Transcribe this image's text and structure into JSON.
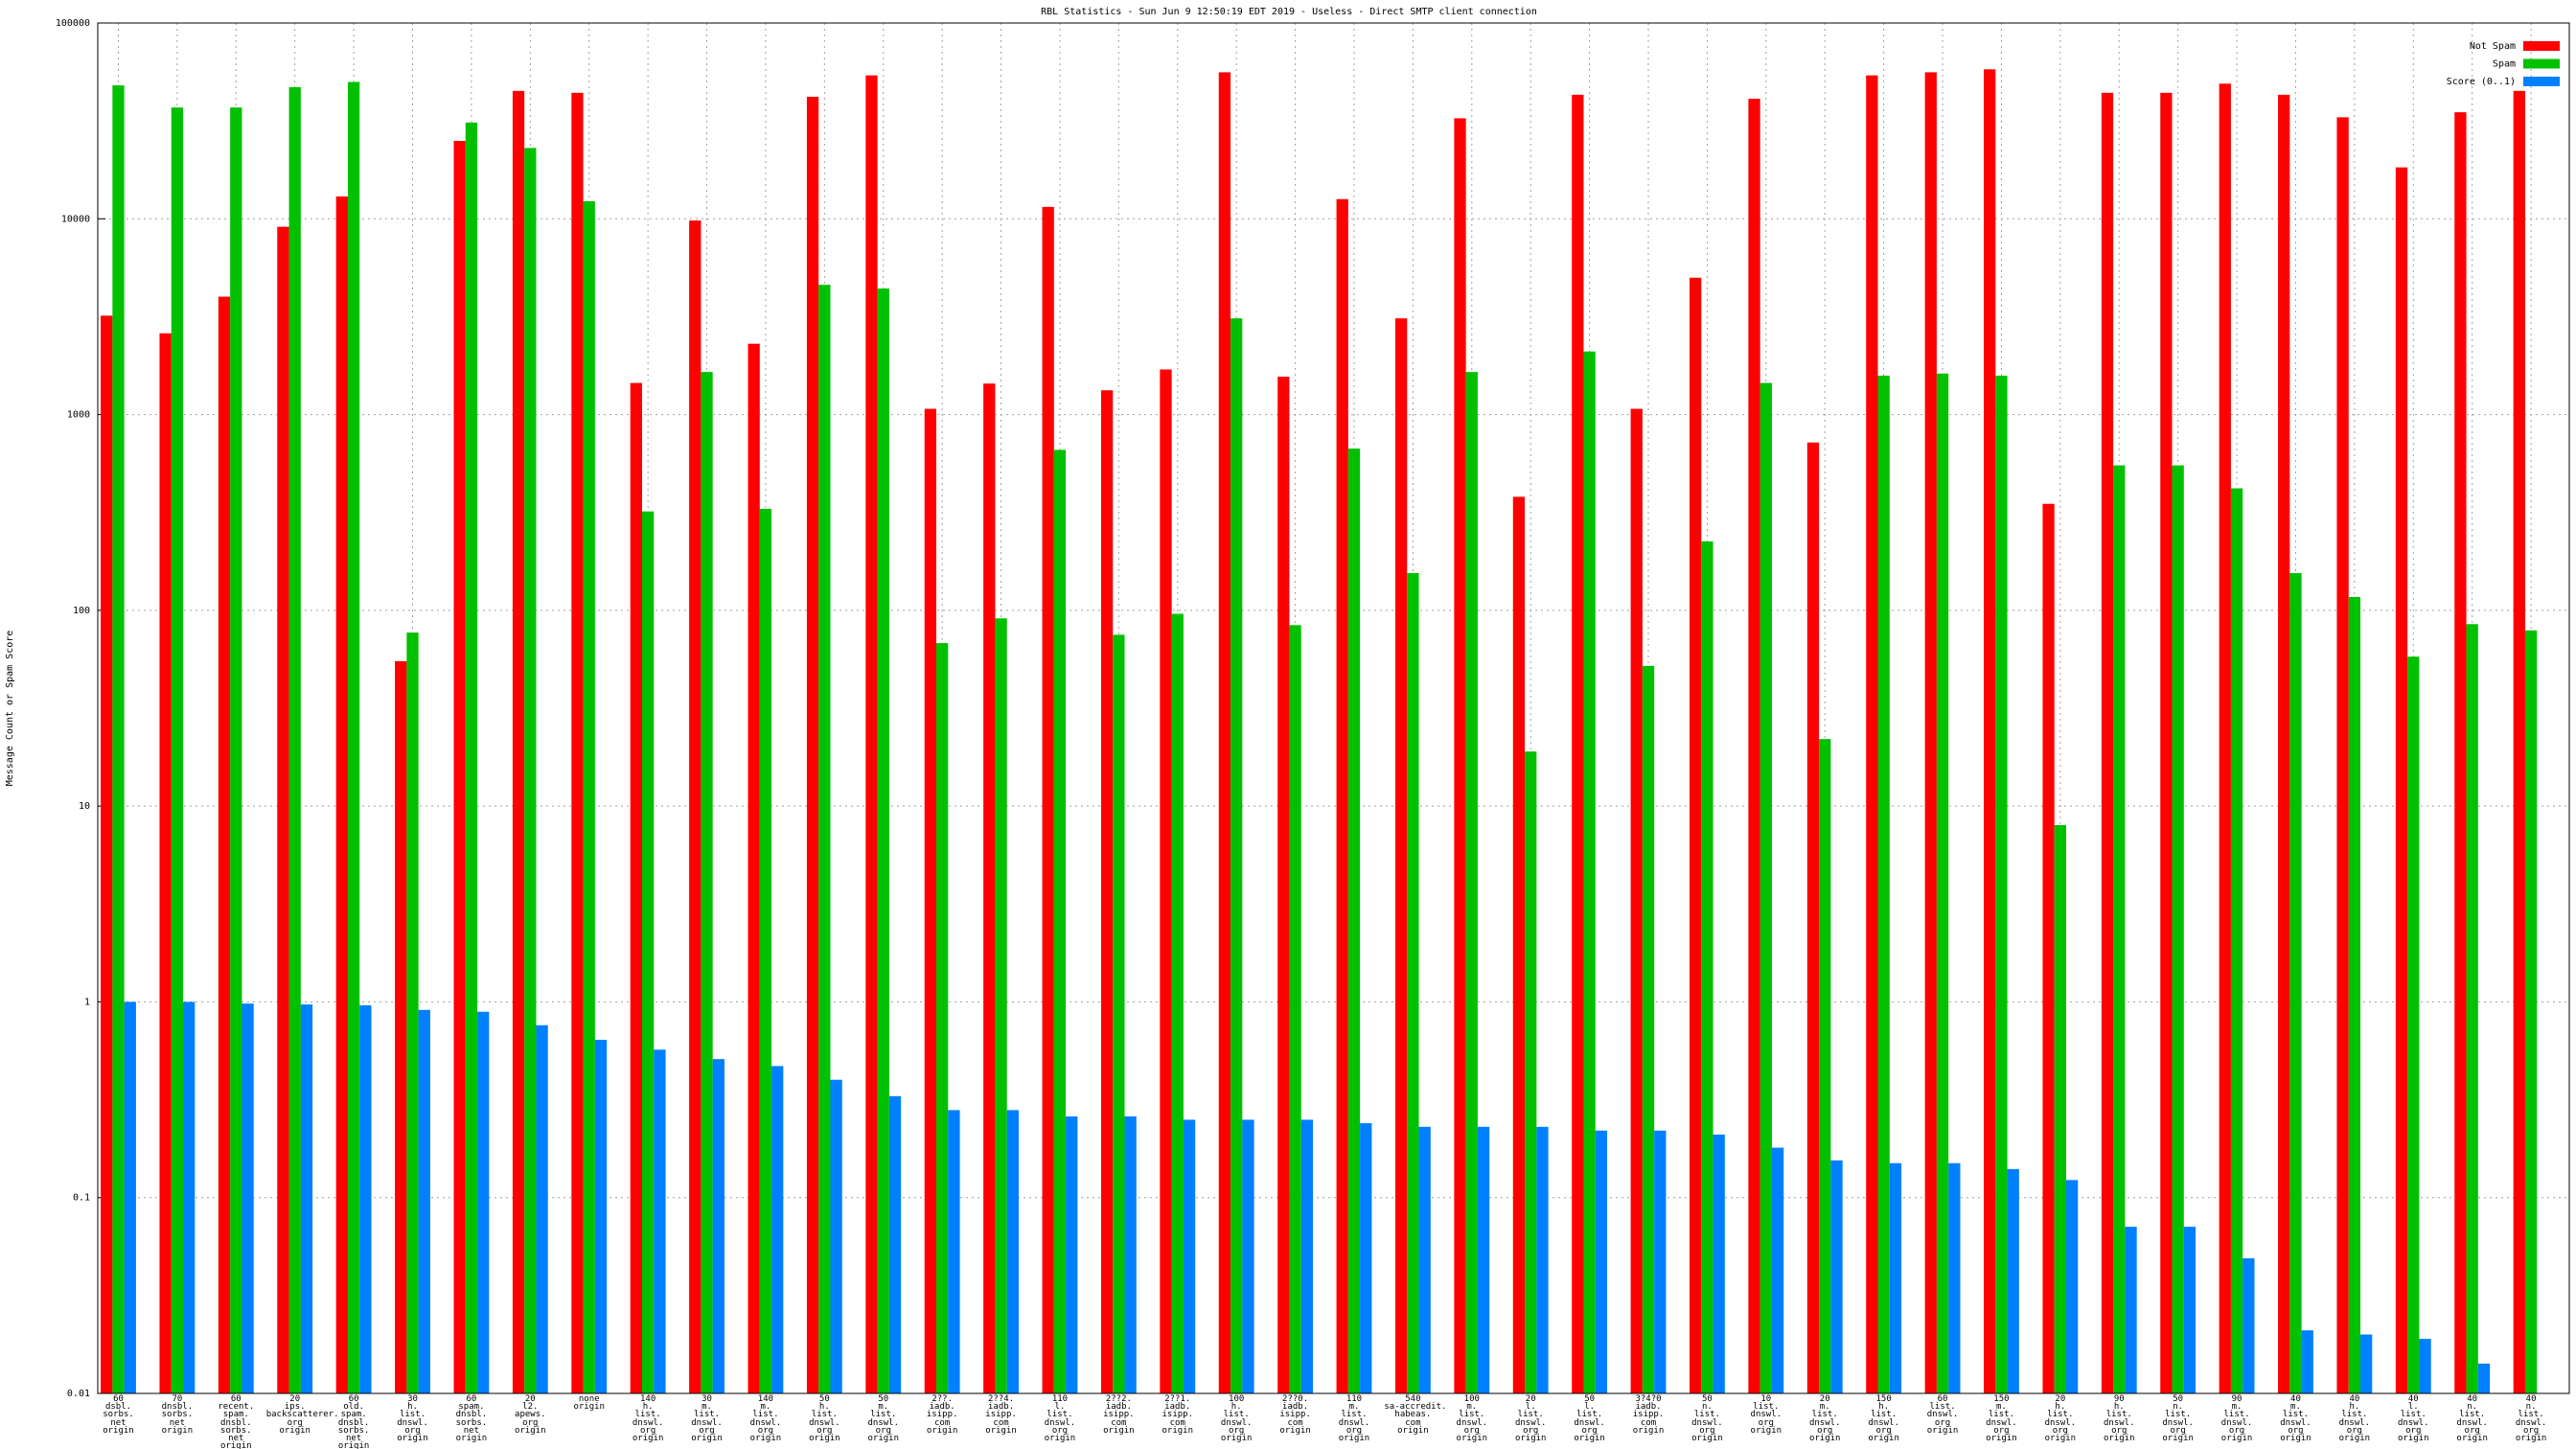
{
  "chart_data": {
    "type": "bar",
    "title": "RBL Statistics - Sun Jun  9 12:50:19 EDT 2019 - Useless - Direct SMTP client connection",
    "y_label": "Message Count or Spam Score",
    "log_scale": true,
    "grid": true,
    "legend": "top-right",
    "categories": [
      "60\ndsbl.\nsorbs.\nnet\norigin",
      "70\ndnsbl.\nsorbs.\nnet\norigin",
      "60\nrecent.\nspam.\ndnsbl.\nsorbs.\nnet\norigin",
      "20\nips.\nbackscatterer.\norg\norigin",
      "60\nold.\nspam.\ndnsbl.\nsorbs.\nnet\norigin",
      "30\nh.\nlist.\ndnswl.\norg\norigin",
      "60\nspam.\ndnsbl.\nsorbs.\nnet\norigin",
      "20\nl2.\napews.\norg\norigin",
      "none\norigin",
      "140\nh.\nlist.\ndnswl.\norg\norigin",
      "30\nm.\nlist.\ndnswl.\norg\norigin",
      "140\nm.\nlist.\ndnswl.\norg\norigin",
      "50\nh.\nlist.\ndnswl.\norg\norigin",
      "50\nm.\nlist.\ndnswl.\norg\norigin",
      "2??.\niadb.\nisipp.\ncom\norigin",
      "2??4.\niadb.\nisipp.\ncom\norigin",
      "110\nl.\nlist.\ndnswl.\norg\norigin",
      "2??2.\niadb.\nisipp.\ncom\norigin",
      "2??1.\niadb.\nisipp.\ncom\norigin",
      "100\nh.\nlist.\ndnswl.\norg\norigin",
      "2??0.\niadb.\nisipp.\ncom\norigin",
      "110\nm.\nlist.\ndnswl.\norg\norigin",
      "540\nsa-accredit.\nhabeas.\ncom\norigin",
      "100\nm.\nlist.\ndnswl.\norg\norigin",
      "20\nl.\nlist.\ndnswl.\norg\norigin",
      "50\nl.\nlist.\ndnswl.\norg\norigin",
      "3?4?0\niadb.\nisipp.\ncom\norigin",
      "50\nn.\nlist.\ndnswl.\norg\norigin",
      "10\nlist.\ndnswl.\norg\norigin",
      "20\nm.\nlist.\ndnswl.\norg\norigin",
      "150\nh.\nlist.\ndnswl.\norg\norigin",
      "60\nlist.\ndnswl.\norg\norigin",
      "150\nm.\nlist.\ndnswl.\norg\norigin",
      "20\nh.\nlist.\ndnswl.\norg\norigin",
      "90\nh.\nlist.\ndnswl.\norg\norigin",
      "50\nn.\nlist.\ndnswl.\norg\norigin",
      "90\nm.\nlist.\ndnswl.\norg\norigin",
      "40\nm.\nlist.\ndnswl.\norg\norigin",
      "40\nh.\nlist.\ndnswl.\norg\norigin",
      "40\nl.\nlist.\ndnswl.\norg\norigin",
      "40\nn.\nlist.\ndnswl.\norg\norigin",
      "40\nn.\nlist.\ndnswl.\norg\norigin"
    ],
    "series": [
      {
        "name": "Not Spam",
        "color": "#ff0000",
        "values": [
          3200,
          2600,
          4000,
          9100,
          13000,
          55,
          25000,
          45000,
          44000,
          1450,
          9800,
          2300,
          42000,
          54000,
          1070,
          1440,
          11500,
          1330,
          1700,
          56000,
          1560,
          12600,
          3100,
          32600,
          380,
          43000,
          1070,
          5000,
          41000,
          720,
          54000,
          56000,
          58000,
          350,
          44000,
          44000,
          49000,
          43000,
          33000,
          18300,
          35000,
          45000
        ]
      },
      {
        "name": "Spam",
        "color": "#00c000",
        "values": [
          48000,
          37000,
          37000,
          47000,
          50000,
          77,
          31000,
          23000,
          12300,
          320,
          1650,
          330,
          4600,
          4400,
          68,
          91,
          660,
          75,
          96,
          3100,
          84,
          670,
          155,
          1650,
          19,
          2100,
          52,
          225,
          1450,
          22,
          1580,
          1620,
          1580,
          8,
          550,
          550,
          420,
          155,
          117,
          58,
          85,
          79
        ]
      },
      {
        "name": "Score (0..1)",
        "color": "#0080ff",
        "values": [
          1.0,
          1.0,
          0.98,
          0.97,
          0.96,
          0.91,
          0.89,
          0.76,
          0.64,
          0.57,
          0.51,
          0.47,
          0.4,
          0.33,
          0.28,
          0.28,
          0.26,
          0.26,
          0.25,
          0.25,
          0.25,
          0.24,
          0.23,
          0.23,
          0.23,
          0.22,
          0.22,
          0.21,
          0.18,
          0.155,
          0.15,
          0.15,
          0.14,
          0.123,
          0.071,
          0.071,
          0.049,
          0.021,
          0.02,
          0.019,
          0.0142,
          null
        ]
      }
    ],
    "ylim": [
      0.01,
      100000
    ],
    "yticks": [
      0.01,
      0.1,
      1,
      10,
      100,
      1000,
      10000,
      100000
    ]
  }
}
